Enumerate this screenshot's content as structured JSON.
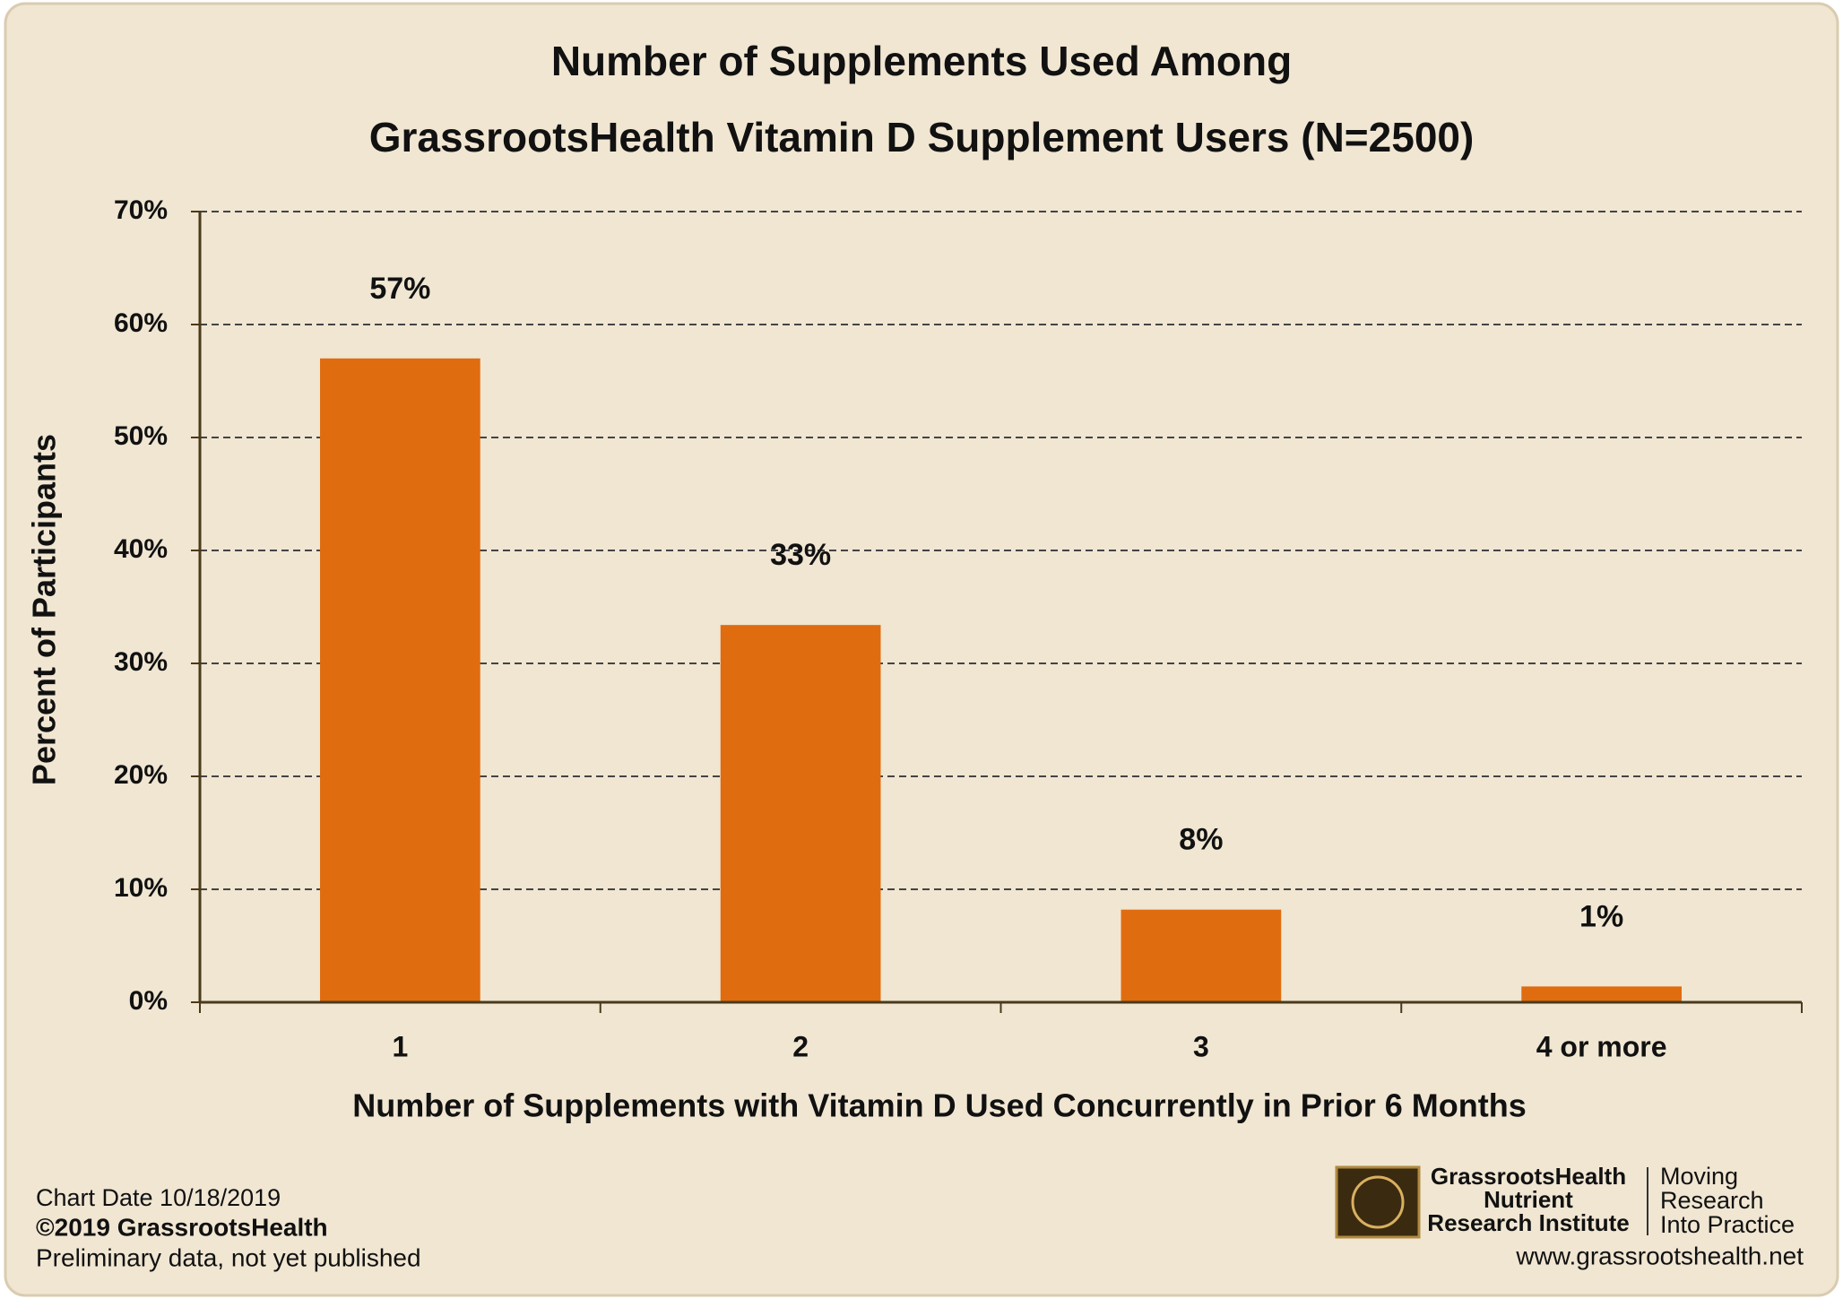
{
  "chart_data": {
    "type": "bar",
    "title": [
      "Number of Supplements Used Among",
      "GrassrootsHealth Vitamin D Supplement Users (N=2500)"
    ],
    "x_label": "Number of Supplements with Vitamin D Used Concurrently in Prior 6 Months",
    "y_label": "Percent of Participants",
    "categories": [
      "1",
      "2",
      "3",
      "4 or more"
    ],
    "values": [
      57,
      33.4,
      8.2,
      1.4
    ],
    "value_labels": [
      "57%",
      "33%",
      "8%",
      "1%"
    ],
    "color": "#e06c10",
    "ylim": [
      0,
      70
    ],
    "yticks": [
      {
        "value": 0,
        "label": "0%"
      },
      {
        "value": 10,
        "label": "10%"
      },
      {
        "value": 20,
        "label": "20%"
      },
      {
        "value": 30,
        "label": "30%"
      },
      {
        "value": 40,
        "label": "40%"
      },
      {
        "value": 50,
        "label": "50%"
      },
      {
        "value": 60,
        "label": "60%"
      },
      {
        "value": 70,
        "label": "70%"
      }
    ],
    "grid": true
  },
  "footer": {
    "chart_date": "Chart Date  10/18/2019",
    "copyright": "©2019 GrassrootsHealth",
    "note": "Preliminary data, not yet published",
    "logo_lines": [
      "GrassrootsHealth",
      "Nutrient",
      "Research Institute"
    ],
    "tagline": [
      "Moving",
      "Research",
      "Into Practice"
    ],
    "url": "www.grassrootshealth.net"
  }
}
